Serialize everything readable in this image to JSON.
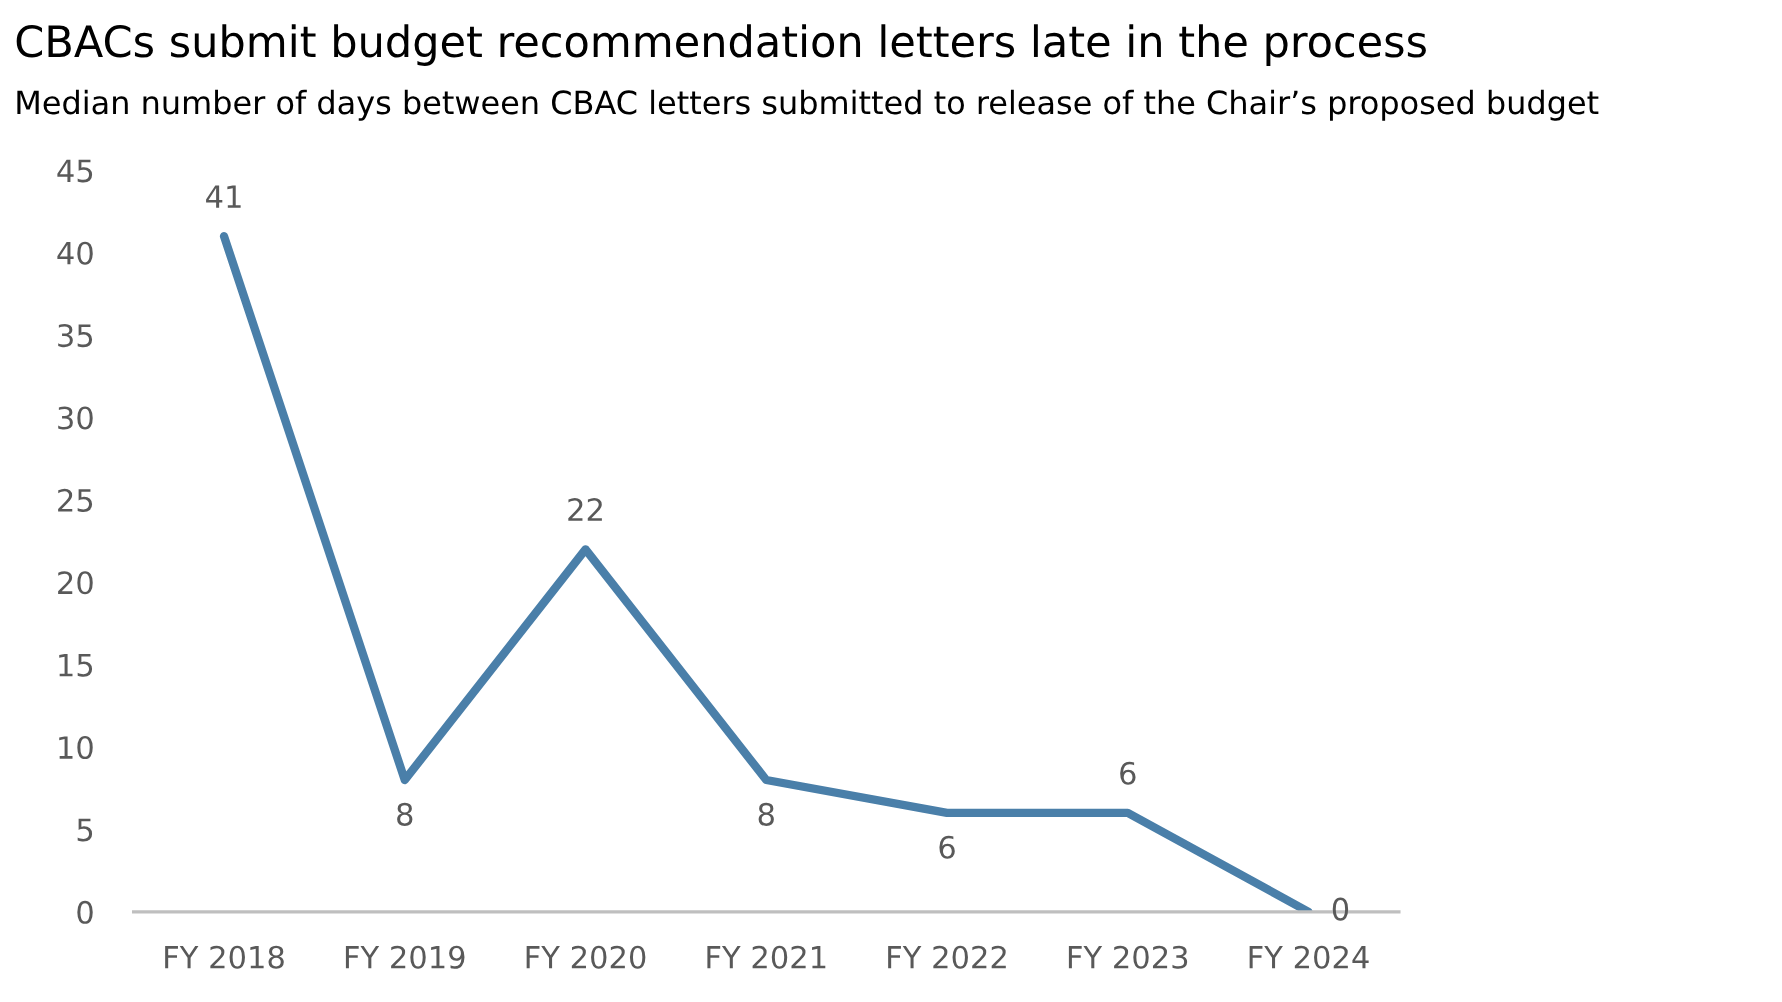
{
  "chart_data": {
    "type": "line",
    "title": "CBACs submit budget recommendation letters late in the process",
    "subtitle": "Median number of days between CBAC letters submitted to release of the Chair’s proposed budget",
    "categories": [
      "FY 2018",
      "FY 2019",
      "FY 2020",
      "FY 2021",
      "FY 2022",
      "FY 2023",
      "FY 2024"
    ],
    "series": [
      {
        "color": "#4a7fa9",
        "values": [
          41,
          8,
          22,
          8,
          6,
          6,
          0
        ]
      }
    ],
    "ylim": [
      0,
      45
    ],
    "yticks": [
      0,
      5,
      10,
      15,
      20,
      25,
      30,
      35,
      40,
      45
    ],
    "data_labels": true,
    "grid": false,
    "legend": false,
    "marker": "none",
    "line_style": "solid"
  }
}
